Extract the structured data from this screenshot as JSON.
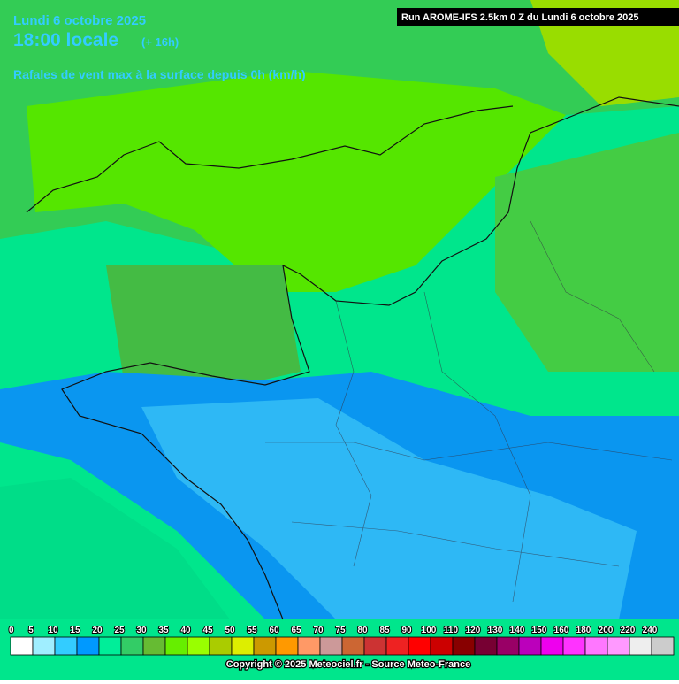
{
  "header": {
    "date": "Lundi 6 octobre 2025",
    "time": "18:00 locale",
    "lead": "(+ 16h)",
    "subtitle": "Rafales de vent max à la surface depuis 0h (km/h)",
    "run": "Run AROME-IFS 2.5km 0 Z du Lundi 6 octobre 2025"
  },
  "legend": {
    "labels": [
      0,
      5,
      10,
      15,
      20,
      25,
      30,
      35,
      40,
      45,
      50,
      55,
      60,
      65,
      70,
      75,
      80,
      85,
      90,
      100,
      110,
      120,
      130,
      140,
      150,
      160,
      180,
      200,
      220,
      240
    ],
    "colors": [
      "#ffffff",
      "#a0eeff",
      "#33ccff",
      "#0099ff",
      "#00ee99",
      "#33cc66",
      "#66bb33",
      "#66ee00",
      "#99ff00",
      "#aacc00",
      "#ddee00",
      "#cc9900",
      "#ff9900",
      "#ff9966",
      "#cc9999",
      "#cc6633",
      "#cc3333",
      "#ee2222",
      "#ff0000",
      "#cc0000",
      "#880000",
      "#770033",
      "#990066",
      "#bb00bb",
      "#ee00ee",
      "#ff33ff",
      "#ff77ff",
      "#ff99ff",
      "#eeeeee",
      "#cccccc"
    ]
  },
  "footer": {
    "copyright": "Copyright © 2025 Meteociel.fr - Source Meteo-France"
  }
}
